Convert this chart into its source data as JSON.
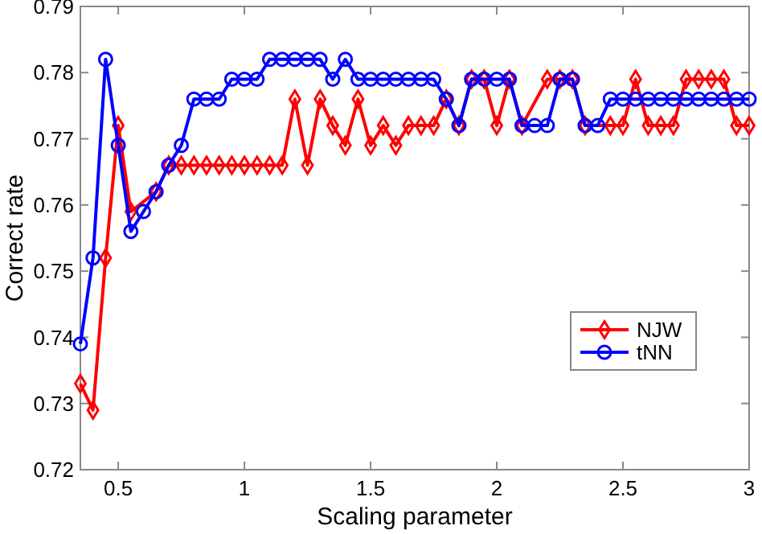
{
  "chart_data": {
    "type": "line",
    "xlabel": "Scaling parameter",
    "ylabel": "Correct rate",
    "x": [
      0.35,
      0.4,
      0.45,
      0.5,
      0.55,
      0.6,
      0.65,
      0.7,
      0.75,
      0.8,
      0.85,
      0.9,
      0.95,
      1,
      1.05,
      1.1,
      1.15,
      1.2,
      1.25,
      1.3,
      1.35,
      1.4,
      1.45,
      1.5,
      1.55,
      1.6,
      1.65,
      1.7,
      1.75,
      1.8,
      1.85,
      1.9,
      1.95,
      2,
      2.05,
      2.1,
      2.15,
      2.2,
      2.25,
      2.3,
      2.35,
      2.4,
      2.45,
      2.5,
      2.55,
      2.6,
      2.65,
      2.7,
      2.75,
      2.8,
      2.85,
      2.9,
      2.95,
      3
    ],
    "series": [
      {
        "name": "NJW",
        "color": "#ff0000",
        "marker": "diamond",
        "values": [
          0.733,
          0.729,
          0.752,
          0.772,
          0.759,
          null,
          0.762,
          0.766,
          0.766,
          0.766,
          0.766,
          0.766,
          0.766,
          0.766,
          0.766,
          0.766,
          0.766,
          0.776,
          0.766,
          0.776,
          0.772,
          0.769,
          0.776,
          0.769,
          0.772,
          0.769,
          0.772,
          0.772,
          0.772,
          0.776,
          0.772,
          0.779,
          0.779,
          0.772,
          0.779,
          0.772,
          null,
          0.779,
          0.779,
          0.779,
          0.772,
          null,
          0.772,
          0.772,
          0.779,
          0.772,
          0.772,
          0.772,
          0.779,
          0.779,
          0.779,
          0.779,
          0.772,
          0.772
        ]
      },
      {
        "name": "tNN",
        "color": "#0000ff",
        "marker": "circle",
        "values": [
          0.739,
          0.752,
          0.782,
          0.769,
          0.756,
          0.759,
          0.762,
          0.766,
          0.769,
          0.776,
          0.776,
          0.776,
          0.779,
          0.779,
          0.779,
          0.782,
          0.782,
          0.782,
          0.782,
          0.782,
          0.779,
          0.782,
          0.779,
          0.779,
          0.779,
          0.779,
          0.779,
          0.779,
          0.779,
          0.776,
          0.772,
          0.779,
          0.779,
          0.779,
          0.779,
          0.772,
          0.772,
          0.772,
          0.779,
          0.779,
          0.772,
          0.772,
          0.776,
          0.776,
          0.776,
          0.776,
          0.776,
          0.776,
          0.776,
          0.776,
          0.776,
          0.776,
          0.776,
          0.776
        ]
      }
    ],
    "xlim": [
      0.35,
      3
    ],
    "xticks": [
      0.5,
      1,
      1.5,
      2,
      2.5,
      3
    ],
    "ylim": [
      0.72,
      0.79
    ],
    "yticks": [
      0.72,
      0.73,
      0.74,
      0.75,
      0.76,
      0.77,
      0.78,
      0.79
    ],
    "grid": false,
    "legend": "right",
    "line_style": "solid"
  }
}
